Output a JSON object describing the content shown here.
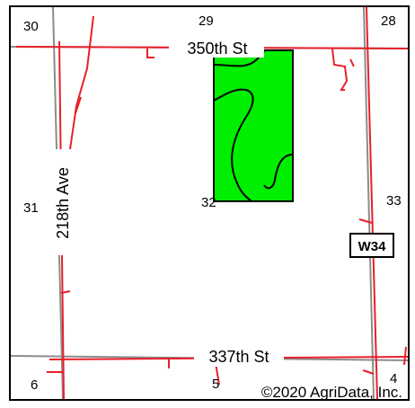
{
  "map": {
    "roads": {
      "north": "350th St",
      "south": "337th St",
      "west": "218th Ave"
    },
    "route_shield": "W34",
    "section_numbers": {
      "s30": "30",
      "s29": "29",
      "s28": "28",
      "s31": "31",
      "s32": "32",
      "s33": "33",
      "s6": "6",
      "s5": "5",
      "s4": "4"
    },
    "copyright": "©2020 AgriData, Inc.",
    "colors": {
      "field_fill": "#00ee00",
      "road_red": "#e8202a",
      "section_gray": "#8c8c8c",
      "outline": "#000000"
    }
  }
}
